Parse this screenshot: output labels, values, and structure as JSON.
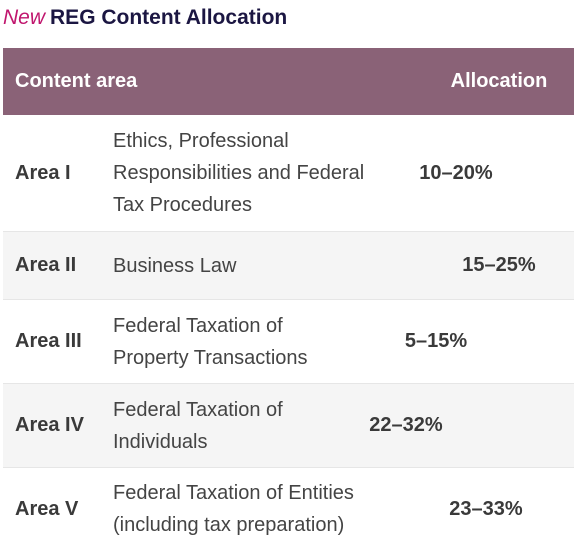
{
  "title": {
    "prefix": "New",
    "text": "REG Content Allocation"
  },
  "table": {
    "headers": {
      "content_area": "Content area",
      "allocation": "Allocation"
    },
    "rows": [
      {
        "area": "Area I",
        "description": "Ethics, Professional Responsibilities and Federal Tax Procedures",
        "allocation": "10–20%"
      },
      {
        "area": "Area II",
        "description": "Business Law",
        "allocation": "15–25%"
      },
      {
        "area": "Area III",
        "description": "Federal Taxation of Property Transactions",
        "allocation": "5–15%"
      },
      {
        "area": "Area IV",
        "description": "Federal Taxation of Individuals",
        "allocation": "22–32%"
      },
      {
        "area": "Area V",
        "description": "Federal Taxation of Entities (including tax preparation)",
        "allocation": "23–33%"
      }
    ]
  },
  "colors": {
    "header_bg": "#8a6277",
    "title_accent": "#c0166e",
    "title_text": "#1b1642",
    "alt_row_bg": "#f5f5f5"
  }
}
